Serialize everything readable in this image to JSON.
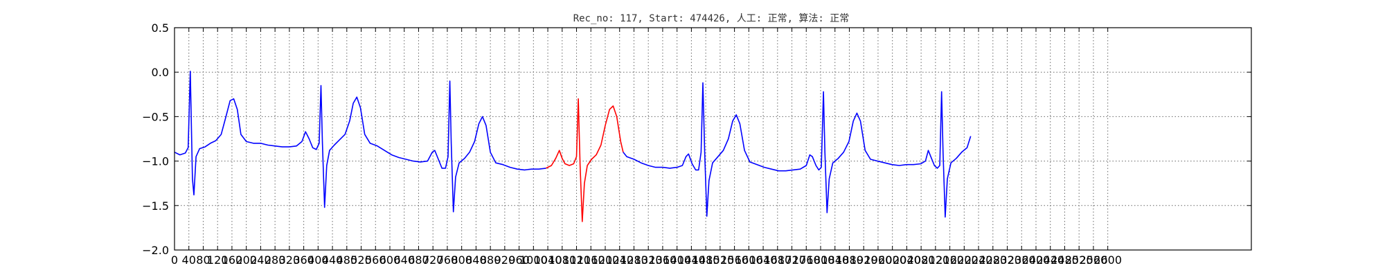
{
  "chart_data": {
    "type": "line",
    "title": "Rec_no: 117, Start: 474426, 人工: 正常, 算法: 正常",
    "xlabel": "",
    "ylabel": "",
    "xlim": [
      0,
      3000
    ],
    "ylim": [
      -2.0,
      0.5
    ],
    "grid": true,
    "x_ticks": [
      0,
      40,
      80,
      120,
      160,
      200,
      240,
      280,
      320,
      360,
      400,
      440,
      480,
      520,
      560,
      600,
      640,
      680,
      720,
      760,
      800,
      840,
      880,
      920,
      960,
      1000,
      1040,
      1080,
      1120,
      1160,
      1200,
      1240,
      1280,
      1320,
      1360,
      1400,
      1440,
      1480,
      1520,
      1560,
      1600,
      1640,
      1680,
      1720,
      1760,
      1800,
      1840,
      1880,
      1920,
      1960,
      2000,
      2040,
      2080,
      2120,
      2160,
      2200,
      2240,
      2280,
      2320,
      2360,
      2400,
      2440,
      2480,
      2520,
      2560,
      2600
    ],
    "y_ticks": [
      0.5,
      0.0,
      -0.5,
      -1.0,
      -1.5,
      -2.0
    ],
    "y_tick_labels": [
      "0.5",
      "0.0",
      "−0.5",
      "−1.0",
      "−1.5",
      "−2.0"
    ],
    "series": [
      {
        "color": "#0000ff",
        "points": [
          [
            0,
            -0.9
          ],
          [
            15,
            -0.93
          ],
          [
            30,
            -0.91
          ],
          [
            38,
            -0.85
          ],
          [
            44,
            0.01
          ],
          [
            50,
            -1.2
          ],
          [
            54,
            -1.38
          ],
          [
            60,
            -0.95
          ],
          [
            70,
            -0.86
          ],
          [
            85,
            -0.84
          ],
          [
            100,
            -0.8
          ],
          [
            115,
            -0.77
          ],
          [
            130,
            -0.7
          ],
          [
            142,
            -0.52
          ],
          [
            155,
            -0.32
          ],
          [
            165,
            -0.3
          ],
          [
            175,
            -0.42
          ],
          [
            185,
            -0.7
          ],
          [
            200,
            -0.78
          ],
          [
            220,
            -0.8
          ],
          [
            240,
            -0.8
          ],
          [
            260,
            -0.82
          ],
          [
            280,
            -0.83
          ],
          [
            300,
            -0.84
          ],
          [
            320,
            -0.84
          ],
          [
            340,
            -0.83
          ],
          [
            355,
            -0.78
          ],
          [
            365,
            -0.67
          ],
          [
            375,
            -0.75
          ],
          [
            385,
            -0.85
          ],
          [
            395,
            -0.87
          ],
          [
            403,
            -0.8
          ],
          [
            408,
            -0.15
          ],
          [
            412,
            -0.8
          ],
          [
            418,
            -1.52
          ],
          [
            424,
            -1.05
          ],
          [
            432,
            -0.88
          ],
          [
            445,
            -0.82
          ],
          [
            460,
            -0.76
          ],
          [
            475,
            -0.7
          ],
          [
            488,
            -0.55
          ],
          [
            498,
            -0.35
          ],
          [
            508,
            -0.28
          ],
          [
            518,
            -0.4
          ],
          [
            530,
            -0.7
          ],
          [
            545,
            -0.8
          ],
          [
            565,
            -0.83
          ],
          [
            585,
            -0.88
          ],
          [
            605,
            -0.93
          ],
          [
            625,
            -0.96
          ],
          [
            645,
            -0.98
          ],
          [
            665,
            -1.0
          ],
          [
            685,
            -1.01
          ],
          [
            705,
            -1.0
          ],
          [
            718,
            -0.9
          ],
          [
            725,
            -0.88
          ],
          [
            735,
            -0.98
          ],
          [
            745,
            -1.08
          ],
          [
            755,
            -1.08
          ],
          [
            762,
            -0.95
          ],
          [
            767,
            -0.1
          ],
          [
            771,
            -0.8
          ],
          [
            777,
            -1.57
          ],
          [
            783,
            -1.18
          ],
          [
            793,
            -1.02
          ],
          [
            808,
            -0.97
          ],
          [
            822,
            -0.9
          ],
          [
            836,
            -0.78
          ],
          [
            848,
            -0.58
          ],
          [
            858,
            -0.5
          ],
          [
            868,
            -0.6
          ],
          [
            880,
            -0.9
          ],
          [
            895,
            -1.02
          ],
          [
            915,
            -1.04
          ],
          [
            935,
            -1.07
          ],
          [
            955,
            -1.09
          ],
          [
            975,
            -1.1
          ],
          [
            995,
            -1.09
          ],
          [
            1015,
            -1.09
          ],
          [
            1035,
            -1.08
          ]
        ]
      },
      {
        "color": "#ff0000",
        "points": [
          [
            1035,
            -1.08
          ],
          [
            1050,
            -1.05
          ],
          [
            1062,
            -0.97
          ],
          [
            1072,
            -0.88
          ],
          [
            1080,
            -0.97
          ],
          [
            1088,
            -1.03
          ],
          [
            1100,
            -1.05
          ],
          [
            1112,
            -1.03
          ],
          [
            1120,
            -0.95
          ],
          [
            1125,
            -0.3
          ],
          [
            1130,
            -1.05
          ],
          [
            1136,
            -1.68
          ],
          [
            1142,
            -1.25
          ],
          [
            1150,
            -1.05
          ],
          [
            1162,
            -0.98
          ],
          [
            1175,
            -0.93
          ],
          [
            1188,
            -0.82
          ],
          [
            1200,
            -0.6
          ],
          [
            1212,
            -0.42
          ],
          [
            1222,
            -0.38
          ],
          [
            1232,
            -0.5
          ],
          [
            1243,
            -0.78
          ],
          [
            1250,
            -0.9
          ]
        ]
      },
      {
        "color": "#0000ff",
        "points": [
          [
            1250,
            -0.9
          ],
          [
            1260,
            -0.95
          ],
          [
            1280,
            -0.98
          ],
          [
            1300,
            -1.02
          ],
          [
            1320,
            -1.05
          ],
          [
            1340,
            -1.07
          ],
          [
            1360,
            -1.07
          ],
          [
            1380,
            -1.08
          ],
          [
            1400,
            -1.07
          ],
          [
            1415,
            -1.05
          ],
          [
            1425,
            -0.95
          ],
          [
            1432,
            -0.92
          ],
          [
            1442,
            -1.03
          ],
          [
            1452,
            -1.1
          ],
          [
            1460,
            -1.1
          ],
          [
            1467,
            -0.9
          ],
          [
            1472,
            -0.12
          ],
          [
            1477,
            -0.9
          ],
          [
            1483,
            -1.62
          ],
          [
            1489,
            -1.22
          ],
          [
            1499,
            -1.02
          ],
          [
            1514,
            -0.95
          ],
          [
            1529,
            -0.88
          ],
          [
            1543,
            -0.75
          ],
          [
            1555,
            -0.55
          ],
          [
            1565,
            -0.48
          ],
          [
            1575,
            -0.58
          ],
          [
            1588,
            -0.88
          ],
          [
            1603,
            -1.01
          ],
          [
            1623,
            -1.04
          ],
          [
            1643,
            -1.07
          ],
          [
            1663,
            -1.09
          ],
          [
            1683,
            -1.11
          ],
          [
            1703,
            -1.11
          ],
          [
            1723,
            -1.1
          ],
          [
            1743,
            -1.09
          ],
          [
            1760,
            -1.05
          ],
          [
            1770,
            -0.93
          ],
          [
            1777,
            -0.95
          ],
          [
            1787,
            -1.05
          ],
          [
            1795,
            -1.1
          ],
          [
            1802,
            -1.07
          ],
          [
            1808,
            -0.22
          ],
          [
            1812,
            -0.9
          ],
          [
            1818,
            -1.58
          ],
          [
            1824,
            -1.2
          ],
          [
            1834,
            -1.02
          ],
          [
            1849,
            -0.97
          ],
          [
            1864,
            -0.9
          ],
          [
            1879,
            -0.78
          ],
          [
            1891,
            -0.55
          ],
          [
            1901,
            -0.46
          ],
          [
            1911,
            -0.55
          ],
          [
            1924,
            -0.88
          ],
          [
            1939,
            -0.98
          ],
          [
            1959,
            -1.0
          ],
          [
            1979,
            -1.02
          ],
          [
            1999,
            -1.04
          ],
          [
            2019,
            -1.05
          ],
          [
            2039,
            -1.04
          ],
          [
            2059,
            -1.04
          ],
          [
            2079,
            -1.03
          ],
          [
            2092,
            -1.0
          ],
          [
            2100,
            -0.88
          ],
          [
            2107,
            -0.95
          ],
          [
            2117,
            -1.05
          ],
          [
            2125,
            -1.08
          ],
          [
            2132,
            -1.05
          ],
          [
            2137,
            -0.22
          ],
          [
            2141,
            -0.9
          ],
          [
            2147,
            -1.63
          ],
          [
            2153,
            -1.2
          ],
          [
            2163,
            -1.02
          ],
          [
            2178,
            -0.97
          ],
          [
            2193,
            -0.9
          ],
          [
            2208,
            -0.85
          ],
          [
            2218,
            -0.72
          ]
        ]
      }
    ]
  }
}
